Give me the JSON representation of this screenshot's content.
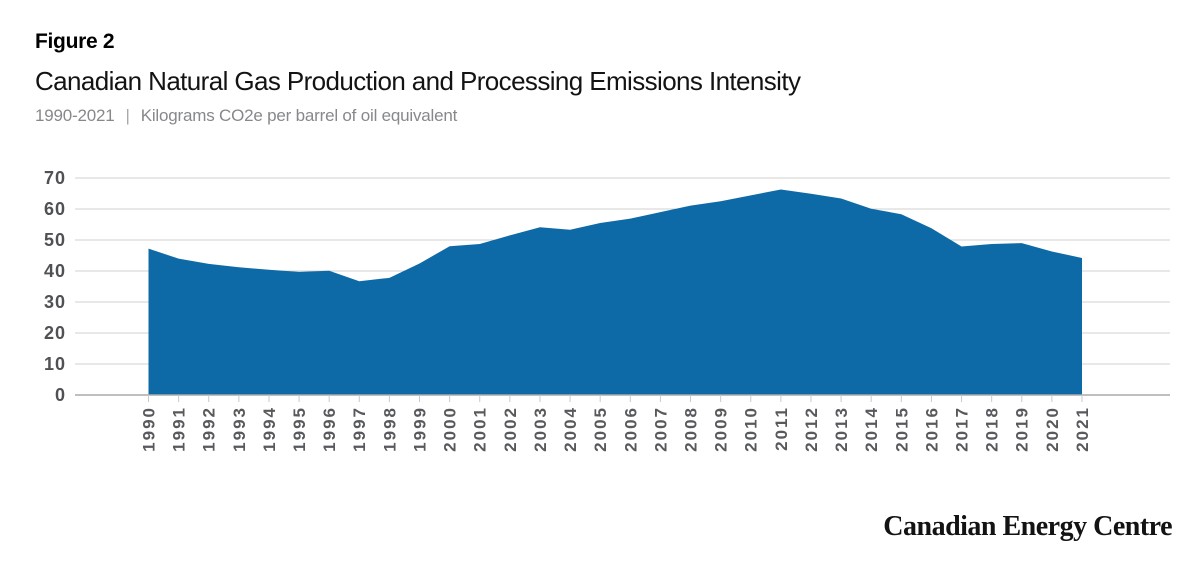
{
  "figure_label": "Figure 2",
  "title": "Canadian Natural Gas Production and Processing Emissions Intensity",
  "subtitle": {
    "range": "1990-2021",
    "separator": "|",
    "units": "Kilograms CO2e per barrel of oil equivalent"
  },
  "footer": {
    "brand": "Canadian Energy Centre"
  },
  "colors": {
    "area_fill": "#0e6aa6",
    "gridline": "#d0d0d0",
    "axis_line": "#aaaaaa",
    "tick": "#c9c9c9",
    "y_label": "#4f5154",
    "x_label": "#57595c"
  },
  "chart_data": {
    "type": "area",
    "title": "Canadian Natural Gas Production and Processing Emissions Intensity",
    "subtitle": "1990-2021 | Kilograms CO2e per barrel of oil equivalent",
    "xlabel": "",
    "ylabel": "Kilograms CO2e per barrel of oil equivalent",
    "x": [
      1990,
      1991,
      1992,
      1993,
      1994,
      1995,
      1996,
      1997,
      1998,
      1999,
      2000,
      2001,
      2002,
      2003,
      2004,
      2005,
      2006,
      2007,
      2008,
      2009,
      2010,
      2011,
      2012,
      2013,
      2014,
      2015,
      2016,
      2017,
      2018,
      2019,
      2020,
      2021
    ],
    "values": [
      47.2,
      44.0,
      42.3,
      41.2,
      40.4,
      39.7,
      40.1,
      36.7,
      37.8,
      42.4,
      48.0,
      48.7,
      51.5,
      54.1,
      53.3,
      55.5,
      56.9,
      59.0,
      61.1,
      62.5,
      64.4,
      66.3,
      64.9,
      63.4,
      60.1,
      58.3,
      53.8,
      47.9,
      48.7,
      49.0,
      46.3,
      44.2
    ],
    "ylim": [
      0,
      70
    ],
    "yticks": [
      0,
      10,
      20,
      30,
      40,
      50,
      60,
      70
    ],
    "grid": true,
    "legend": false
  }
}
